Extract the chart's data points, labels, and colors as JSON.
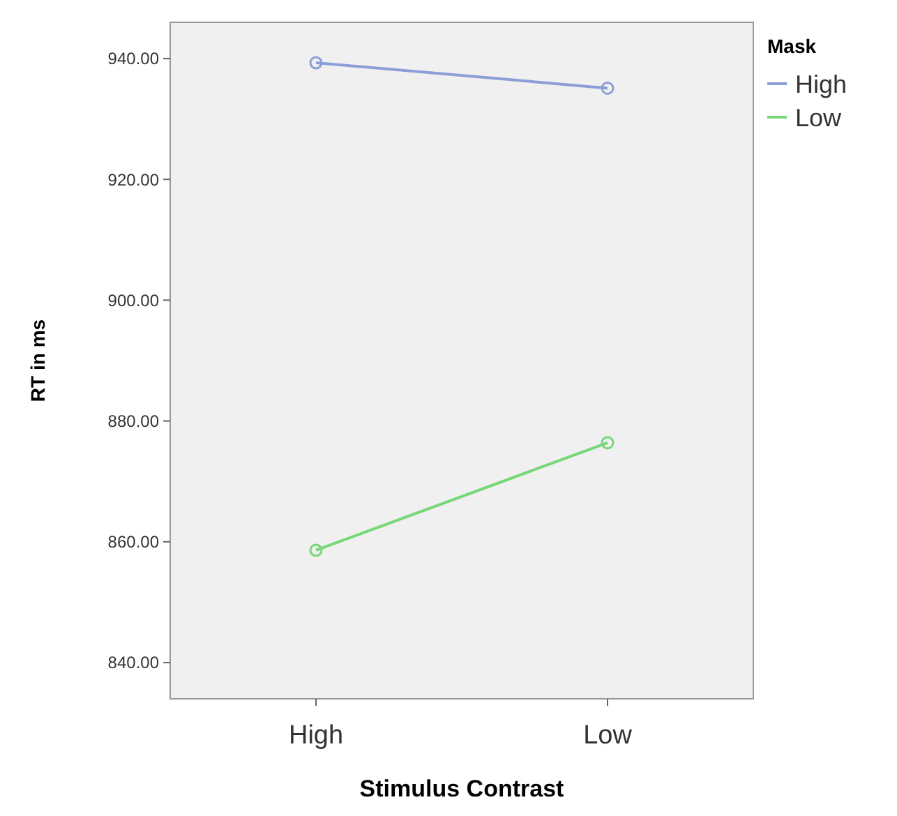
{
  "chart_data": {
    "type": "line",
    "xlabel": "Stimulus Contrast",
    "ylabel": "RT in ms",
    "legend_title": "Mask",
    "categories": [
      "High",
      "Low"
    ],
    "series": [
      {
        "name": "High",
        "color": "#8c9ed8",
        "values": [
          939.3,
          935.1
        ]
      },
      {
        "name": "Low",
        "color": "#78d878",
        "values": [
          858.6,
          876.4
        ]
      }
    ],
    "ylim": [
      834,
      946
    ],
    "yticks": [
      {
        "value": 840,
        "label": "840.00"
      },
      {
        "value": 860,
        "label": "860.00"
      },
      {
        "value": 880,
        "label": "880.00"
      },
      {
        "value": 900,
        "label": "900.00"
      },
      {
        "value": 920,
        "label": "920.00"
      },
      {
        "value": 940,
        "label": "940.00"
      }
    ],
    "marker": "circle",
    "legend": "top right",
    "grid": false
  }
}
